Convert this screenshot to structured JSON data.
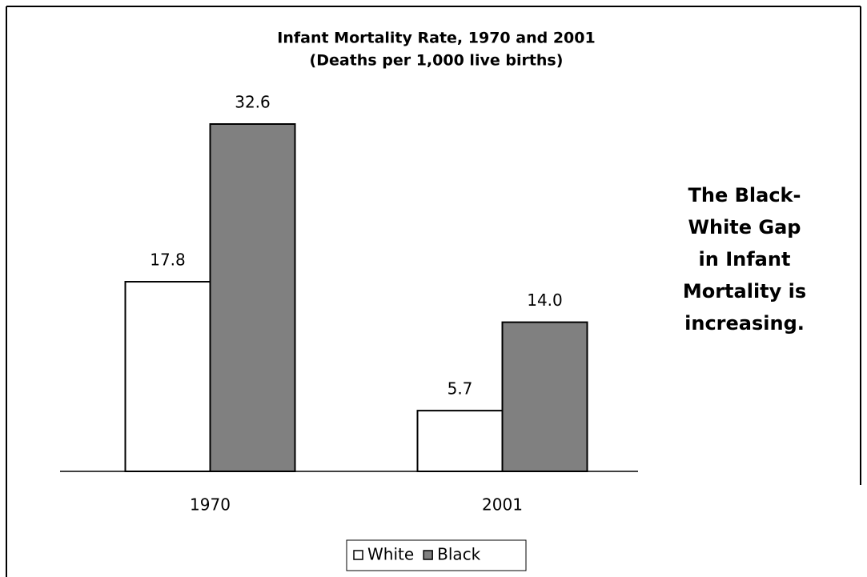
{
  "chart_data": {
    "type": "bar",
    "title": "Infant Mortality Rate, 1970 and 2001",
    "subtitle": "(Deaths per 1,000 live births)",
    "categories": [
      "1970",
      "2001"
    ],
    "series": [
      {
        "name": "White",
        "color": "#ffffff",
        "values": [
          17.8,
          5.7
        ],
        "value_labels": [
          "17.8",
          "5.7"
        ]
      },
      {
        "name": "Black",
        "color": "#808080",
        "values": [
          32.6,
          14.0
        ],
        "value_labels": [
          "32.6",
          "14.0"
        ]
      }
    ],
    "annotation": [
      "The Black-",
      "White Gap",
      "in Infant",
      "Mortality is",
      "increasing."
    ],
    "legend": "bottom"
  }
}
